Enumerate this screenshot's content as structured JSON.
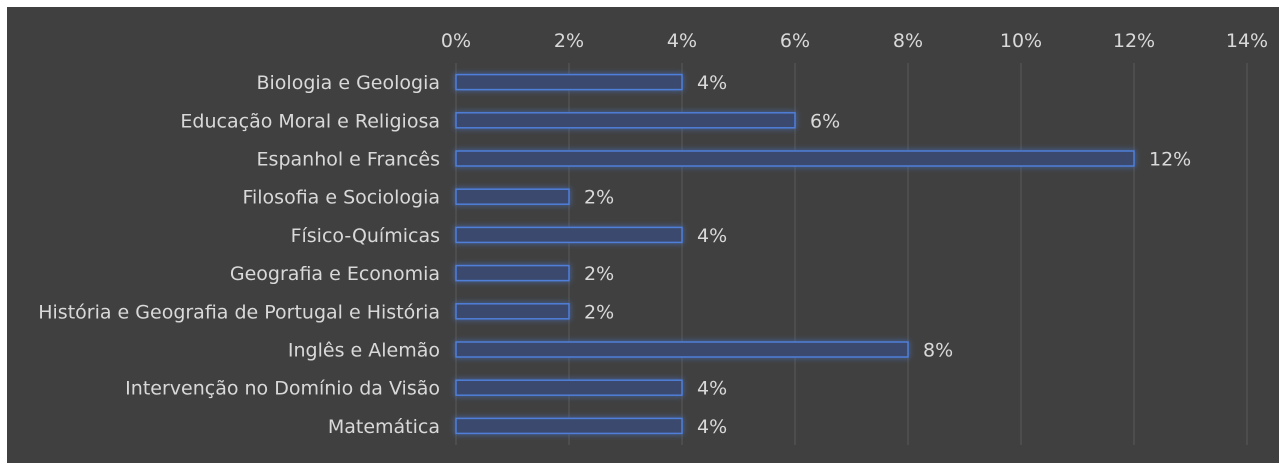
{
  "chart_data": {
    "type": "bar",
    "orientation": "horizontal",
    "title": "",
    "xlabel": "",
    "ylabel": "",
    "categories": [
      "Biologia e Geologia",
      "Educação Moral e Religiosa",
      "Espanhol e Francês",
      "Filosofia e Sociologia",
      "Físico-Químicas",
      "Geografia e Economia",
      "História e Geografia de Portugal e História",
      "Inglês e Alemão",
      "Intervenção no Domínio da Visão",
      "Matemática"
    ],
    "values": [
      4,
      6,
      12,
      2,
      4,
      2,
      2,
      8,
      4,
      4
    ],
    "data_labels": [
      "4%",
      "6%",
      "12%",
      "2%",
      "4%",
      "2%",
      "2%",
      "8%",
      "4%",
      "4%"
    ],
    "xlim": [
      0,
      14
    ],
    "x_ticks": [
      0,
      2,
      4,
      6,
      8,
      10,
      12,
      14
    ],
    "x_tick_labels": [
      "0%",
      "2%",
      "4%",
      "6%",
      "8%",
      "10%",
      "12%",
      "14%"
    ],
    "x_axis_position": "top",
    "grid": true,
    "legend": "none",
    "colors": {
      "background": "#404040",
      "bar_fill": "#3a4a6e",
      "bar_stroke": "#4f7fd8",
      "bar_glow": "#3b6fd1",
      "text": "#d9d9d9",
      "grid": "#5a5a5a"
    }
  }
}
